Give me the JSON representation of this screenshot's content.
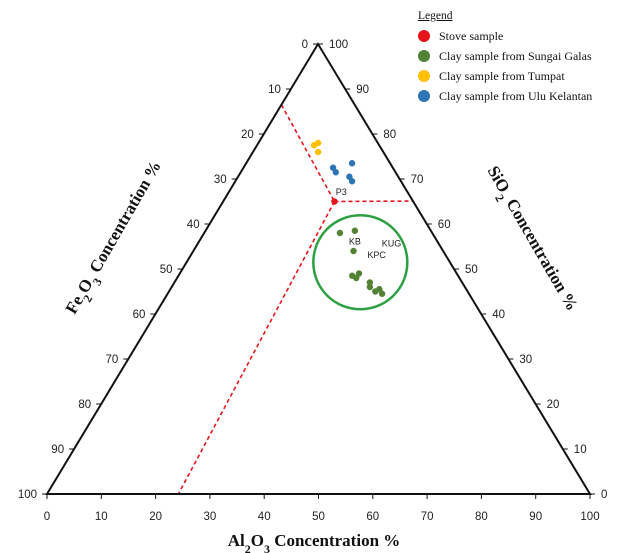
{
  "chart_data": {
    "type": "scatter",
    "subtype": "ternary",
    "axes": {
      "bottom": {
        "title": "Al2O3 Concentration %",
        "ticks": [
          "0",
          "10",
          "20",
          "30",
          "40",
          "50",
          "60",
          "70",
          "80",
          "90",
          "100"
        ]
      },
      "left": {
        "title": "Fe2O3 Concentration %",
        "ticks": [
          "0",
          "10",
          "20",
          "30",
          "40",
          "50",
          "60",
          "70",
          "80",
          "90",
          "100"
        ]
      },
      "right": {
        "title": "SiO2 Concentration %",
        "ticks": [
          "100",
          "90",
          "80",
          "70",
          "60",
          "50",
          "40",
          "30",
          "20",
          "10",
          "0"
        ]
      }
    },
    "legend": {
      "title": "Legend",
      "position": "top-right",
      "items": [
        {
          "label": "Stove sample",
          "color": "#e8141b"
        },
        {
          "label": "Clay sample from Sungai Galas",
          "color": "#548235"
        },
        {
          "label": "Clay sample from Tumpat",
          "color": "#ffc000"
        },
        {
          "label": "Clay sample from Ulu Kelantan",
          "color": "#2e75b6"
        }
      ]
    },
    "series": [
      {
        "name": "Stove sample",
        "color": "#e8141b",
        "points": [
          {
            "Al2O3": 20.5,
            "Fe2O3": 14.5,
            "SiO2": 65.0
          }
        ]
      },
      {
        "name": "Clay sample from Sungai Galas",
        "color": "#548235",
        "points": [
          {
            "Al2O3": 27.5,
            "Fe2O3": 14.0,
            "SiO2": 58.5
          },
          {
            "Al2O3": 25.0,
            "Fe2O3": 17.0,
            "SiO2": 58.0
          },
          {
            "Al2O3": 29.5,
            "Fe2O3": 16.5,
            "SiO2": 54.0
          },
          {
            "Al2O3": 33.0,
            "Fe2O3": 18.0,
            "SiO2": 49.0
          },
          {
            "Al2O3": 32.0,
            "Fe2O3": 19.5,
            "SiO2": 48.5
          },
          {
            "Al2O3": 33.0,
            "Fe2O3": 19.0,
            "SiO2": 48.0
          },
          {
            "Al2O3": 36.0,
            "Fe2O3": 17.0,
            "SiO2": 47.0
          },
          {
            "Al2O3": 36.5,
            "Fe2O3": 17.5,
            "SiO2": 46.0
          },
          {
            "Al2O3": 38.5,
            "Fe2O3": 16.0,
            "SiO2": 45.5
          },
          {
            "Al2O3": 38.0,
            "Fe2O3": 17.0,
            "SiO2": 45.0
          },
          {
            "Al2O3": 39.5,
            "Fe2O3": 16.0,
            "SiO2": 44.5
          }
        ]
      },
      {
        "name": "Clay sample from Tumpat",
        "color": "#ffc000",
        "points": [
          {
            "Al2O3": 10.5,
            "Fe2O3": 12.0,
            "SiO2": 77.5
          },
          {
            "Al2O3": 11.0,
            "Fe2O3": 11.0,
            "SiO2": 78.0
          },
          {
            "Al2O3": 12.0,
            "Fe2O3": 12.0,
            "SiO2": 76.0
          }
        ]
      },
      {
        "name": "Clay sample from Ulu Kelantan",
        "color": "#2e75b6",
        "points": [
          {
            "Al2O3": 16.5,
            "Fe2O3": 11.0,
            "SiO2": 72.5
          },
          {
            "Al2O3": 17.5,
            "Fe2O3": 11.0,
            "SiO2": 71.5
          },
          {
            "Al2O3": 19.5,
            "Fe2O3": 7.0,
            "SiO2": 73.5
          },
          {
            "Al2O3": 20.5,
            "Fe2O3": 9.0,
            "SiO2": 70.5
          },
          {
            "Al2O3": 21.5,
            "Fe2O3": 9.0,
            "SiO2": 69.5
          }
        ]
      }
    ],
    "annotations": [
      {
        "label": "P3",
        "Al2O3": 21.0,
        "Fe2O3": 12.5
      },
      {
        "label": "KB",
        "Al2O3": 29.0,
        "Fe2O3": 15.5
      },
      {
        "label": "KUG",
        "Al2O3": 36.0,
        "Fe2O3": 9.0
      },
      {
        "label": "KPC",
        "Al2O3": 34.5,
        "Fe2O3": 13.0
      }
    ],
    "reference_lines": [
      {
        "style": "dashed",
        "color": "#e8141b",
        "from": {
          "Al2O3": 0,
          "Fe2O3": 13.5
        },
        "to": {
          "Al2O3": 20.5,
          "Fe2O3": 14.5
        }
      },
      {
        "style": "dashed",
        "color": "#e8141b",
        "from": {
          "Al2O3": 20.5,
          "Fe2O3": 14.5
        },
        "to": {
          "Al2O3": 34.9,
          "Fe2O3": 0
        }
      },
      {
        "style": "dashed",
        "color": "#e8141b",
        "from": {
          "Al2O3": 20.5,
          "Fe2O3": 14.5
        },
        "to": {
          "Al2O3": 24.2,
          "Fe2O3": 75.8
        }
      }
    ],
    "highlight": {
      "shape": "circle",
      "color": "#2ea043",
      "center": {
        "Al2O3": 32.0,
        "Fe2O3": 16.5
      }
    },
    "grid": false
  }
}
